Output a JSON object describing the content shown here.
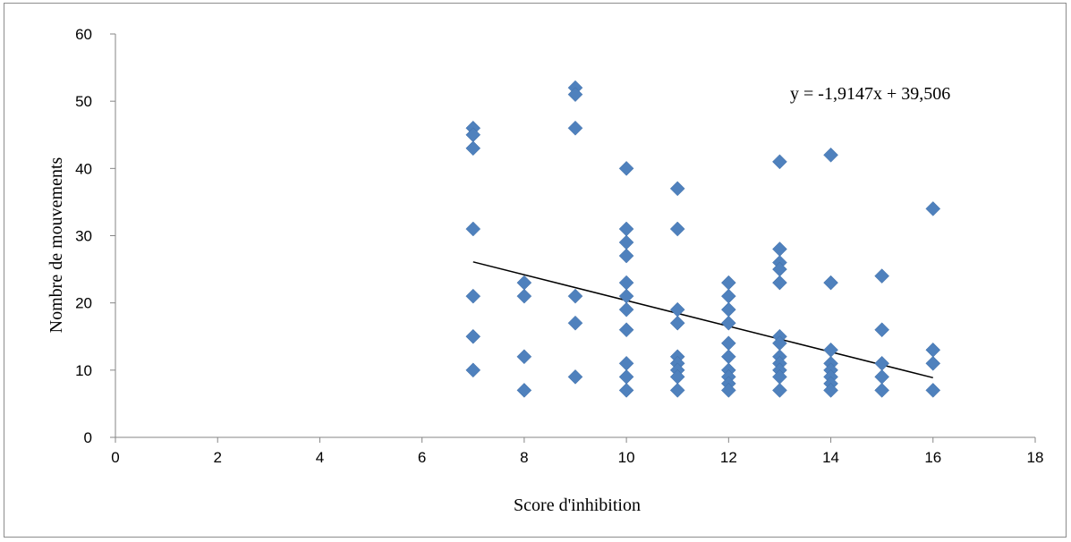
{
  "chart_data": {
    "type": "scatter",
    "title": "",
    "xlabel": "Score d'inhibition",
    "ylabel": "Nombre de mouvements",
    "xlim": [
      0,
      18
    ],
    "ylim": [
      0,
      60
    ],
    "x_ticks": [
      "0",
      "2",
      "4",
      "6",
      "8",
      "10",
      "12",
      "14",
      "16",
      "18"
    ],
    "y_ticks": [
      "0",
      "10",
      "20",
      "30",
      "40",
      "50",
      "60"
    ],
    "grid": false,
    "legend": "none",
    "marker": "diamond",
    "marker_color": "#4F81BD",
    "points": [
      [
        7,
        46
      ],
      [
        7,
        45
      ],
      [
        7,
        43
      ],
      [
        7,
        31
      ],
      [
        7,
        21
      ],
      [
        7,
        15
      ],
      [
        7,
        10
      ],
      [
        8,
        23
      ],
      [
        8,
        21
      ],
      [
        8,
        12
      ],
      [
        8,
        7
      ],
      [
        9,
        52
      ],
      [
        9,
        51
      ],
      [
        9,
        46
      ],
      [
        9,
        21
      ],
      [
        9,
        17
      ],
      [
        9,
        9
      ],
      [
        10,
        40
      ],
      [
        10,
        31
      ],
      [
        10,
        29
      ],
      [
        10,
        27
      ],
      [
        10,
        23
      ],
      [
        10,
        21
      ],
      [
        10,
        19
      ],
      [
        10,
        16
      ],
      [
        10,
        11
      ],
      [
        10,
        9
      ],
      [
        10,
        7
      ],
      [
        11,
        37
      ],
      [
        11,
        31
      ],
      [
        11,
        19
      ],
      [
        11,
        17
      ],
      [
        11,
        12
      ],
      [
        11,
        11
      ],
      [
        11,
        10
      ],
      [
        11,
        9
      ],
      [
        11,
        7
      ],
      [
        12,
        23
      ],
      [
        12,
        21
      ],
      [
        12,
        19
      ],
      [
        12,
        17
      ],
      [
        12,
        14
      ],
      [
        12,
        12
      ],
      [
        12,
        10
      ],
      [
        12,
        9
      ],
      [
        12,
        8
      ],
      [
        12,
        7
      ],
      [
        13,
        41
      ],
      [
        13,
        28
      ],
      [
        13,
        26
      ],
      [
        13,
        25
      ],
      [
        13,
        23
      ],
      [
        13,
        15
      ],
      [
        13,
        14
      ],
      [
        13,
        12
      ],
      [
        13,
        11
      ],
      [
        13,
        10
      ],
      [
        13,
        9
      ],
      [
        13,
        7
      ],
      [
        14,
        42
      ],
      [
        14,
        23
      ],
      [
        14,
        13
      ],
      [
        14,
        11
      ],
      [
        14,
        10
      ],
      [
        14,
        9
      ],
      [
        14,
        8
      ],
      [
        14,
        7
      ],
      [
        15,
        24
      ],
      [
        15,
        16
      ],
      [
        15,
        11
      ],
      [
        15,
        9
      ],
      [
        15,
        7
      ],
      [
        16,
        34
      ],
      [
        16,
        13
      ],
      [
        16,
        11
      ],
      [
        16,
        7
      ]
    ],
    "trendline": {
      "type": "linear",
      "slope": -1.9147,
      "intercept": 39.506,
      "x_range": [
        7,
        16
      ],
      "color": "#000000",
      "equation_label": "y = -1,9147x + 39,506"
    }
  }
}
